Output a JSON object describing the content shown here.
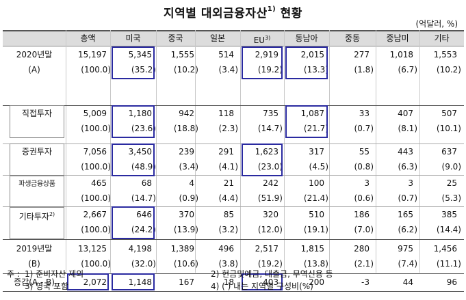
{
  "title": "지역별 대외금융자산",
  "title_sup": "1)",
  "title_suffix": "현황",
  "unit": "(억달러, %)",
  "columns": [
    "",
    "총액",
    "미국",
    "중국",
    "일본",
    "EU",
    "동남아",
    "중동",
    "중남미",
    "기타"
  ],
  "column_sups": {
    "EU": "3)"
  },
  "rows": [
    {
      "label": "2020년말",
      "sub": "(A)",
      "values": [
        "15,197",
        "5,345",
        "1,555",
        "514",
        "2,919",
        "2,015",
        "277",
        "1,018",
        "1,553"
      ],
      "pcts": [
        "(100.0)",
        "(35.2)",
        "(10.2)",
        "(3.4)",
        "(19.2)",
        "(13.3)",
        "(1.8)",
        "(6.7)",
        "(10.2)"
      ]
    },
    {
      "label": "직접투자",
      "values": [
        "5,009",
        "1,180",
        "942",
        "118",
        "735",
        "1,087",
        "33",
        "407",
        "507"
      ],
      "pcts": [
        "(100.0)",
        "(23.6)",
        "(18.8)",
        "(2.3)",
        "(14.7)",
        "(21.7)",
        "(0.7)",
        "(8.1)",
        "(10.1)"
      ]
    },
    {
      "label": "증권투자",
      "values": [
        "7,056",
        "3,450",
        "239",
        "291",
        "1,623",
        "317",
        "55",
        "443",
        "637"
      ],
      "pcts": [
        "(100.0)",
        "(48.9)",
        "(3.4)",
        "(4.1)",
        "(23.0)",
        "(4.5)",
        "(0.8)",
        "(6.3)",
        "(9.0)"
      ]
    },
    {
      "label": "파생금융상품",
      "values": [
        "465",
        "68",
        "4",
        "21",
        "242",
        "100",
        "3",
        "3",
        "25"
      ],
      "pcts": [
        "(100.0)",
        "(14.7)",
        "(0.9)",
        "(4.4)",
        "(51.9)",
        "(21.4)",
        "(0.6)",
        "(0.7)",
        "(5.3)"
      ]
    },
    {
      "label": "기타투자",
      "label_sup": "2)",
      "values": [
        "2,667",
        "646",
        "370",
        "85",
        "320",
        "510",
        "186",
        "165",
        "385"
      ],
      "pcts": [
        "(100.0)",
        "(24.2)",
        "(13.9)",
        "(3.2)",
        "(12.0)",
        "(19.1)",
        "(7.0)",
        "(6.2)",
        "(14.4)"
      ]
    },
    {
      "label": "2019년말",
      "sub": "(B)",
      "values": [
        "13,125",
        "4,198",
        "1,389",
        "496",
        "2,517",
        "1,815",
        "280",
        "975",
        "1,456"
      ],
      "pcts": [
        "(100.0)",
        "(32.0)",
        "(10.6)",
        "(3.8)",
        "(19.2)",
        "(13.8)",
        "(2.1)",
        "(7.4)",
        "(11.1)"
      ]
    },
    {
      "label": "증감(A - B)",
      "values": [
        "2,072",
        "1,148",
        "167",
        "18",
        "403",
        "200",
        "-3",
        "44",
        "96"
      ]
    }
  ],
  "notes": {
    "prefix": "주 :",
    "n1": "1) 준비자산 제외",
    "n2": "2) 현금및예금, 대출금, 무역신용 등",
    "n3": "3) 영국 포함",
    "n4": "4) (  ) 내는 지역별 구성비(%)"
  },
  "colors": {
    "highlight_border": "#2a2aa0",
    "header_bg": "#dcdcdc"
  }
}
